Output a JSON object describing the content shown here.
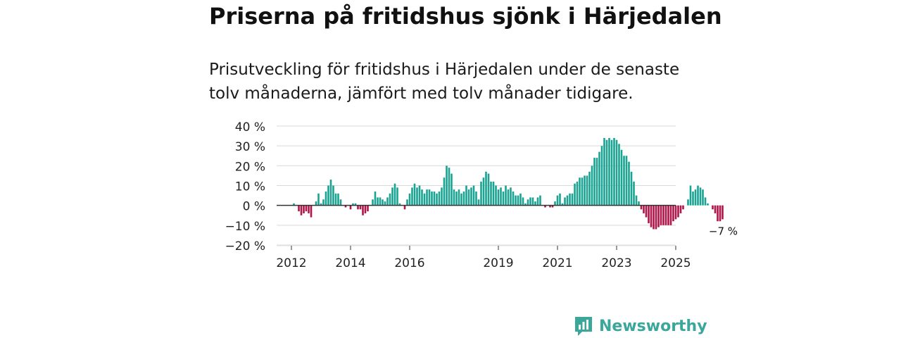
{
  "header": {
    "title": "Priserna på fritidshus sjönk i Härjedalen",
    "subtitle": "Prisutveckling för fritidshus i Härjedalen under de senaste tolv månaderna, jämfört med tolv månader tidigare."
  },
  "brand": {
    "name": "Newsworthy"
  },
  "colors": {
    "positive": "#1aa393",
    "negative": "#b0154a",
    "zero_line": "#333333",
    "grid": "#d9d9d9"
  },
  "chart_data": {
    "type": "bar",
    "title": "Priserna på fritidshus sjönk i Härjedalen",
    "xlabel": "",
    "ylabel": "",
    "ylim": [
      -20,
      40
    ],
    "yticks": [
      40,
      30,
      20,
      10,
      0,
      -10,
      -20
    ],
    "ytick_labels": [
      "40 %",
      "30 %",
      "20 %",
      "10 %",
      "0 %",
      "−10 %",
      "−20 %"
    ],
    "xticks": [
      "2012",
      "2014",
      "2016",
      "2019",
      "2021",
      "2023",
      "2025"
    ],
    "grid": true,
    "start_month": "2012-01",
    "annotation": {
      "text": "−7 %",
      "target": "last"
    },
    "values": [
      0,
      1,
      0,
      -3,
      -5,
      -4,
      -3,
      -4,
      -6,
      0,
      2,
      6,
      1,
      3,
      7,
      10,
      13,
      10,
      6,
      6,
      3,
      0,
      -1,
      0,
      -2,
      1,
      1,
      -2,
      -2,
      -5,
      -4,
      -3,
      0,
      3,
      7,
      4,
      4,
      3,
      2,
      4,
      6,
      9,
      11,
      9,
      1,
      0,
      -2,
      3,
      6,
      9,
      11,
      9,
      10,
      8,
      6,
      8,
      8,
      7,
      7,
      6,
      7,
      9,
      14,
      20,
      19,
      16,
      8,
      7,
      8,
      6,
      7,
      10,
      8,
      9,
      10,
      7,
      3,
      12,
      14,
      17,
      16,
      12,
      12,
      10,
      8,
      9,
      7,
      10,
      8,
      9,
      7,
      5,
      5,
      6,
      4,
      1,
      3,
      4,
      4,
      2,
      4,
      5,
      0,
      -1,
      0,
      -1,
      -1,
      2,
      5,
      6,
      1,
      4,
      5,
      6,
      6,
      11,
      12,
      14,
      14,
      15,
      15,
      17,
      20,
      24,
      24,
      27,
      30,
      34,
      33,
      34,
      33,
      34,
      33,
      31,
      28,
      25,
      25,
      22,
      17,
      12,
      5,
      2,
      -2,
      -4,
      -6,
      -9,
      -11,
      -12,
      -12,
      -11,
      -10,
      -10,
      -10,
      -10,
      -10,
      -8,
      -7,
      -6,
      -4,
      -2,
      0,
      3,
      10,
      7,
      8,
      10,
      9,
      8,
      4,
      1,
      0,
      -2,
      -4,
      -8,
      -8,
      -7
    ]
  }
}
